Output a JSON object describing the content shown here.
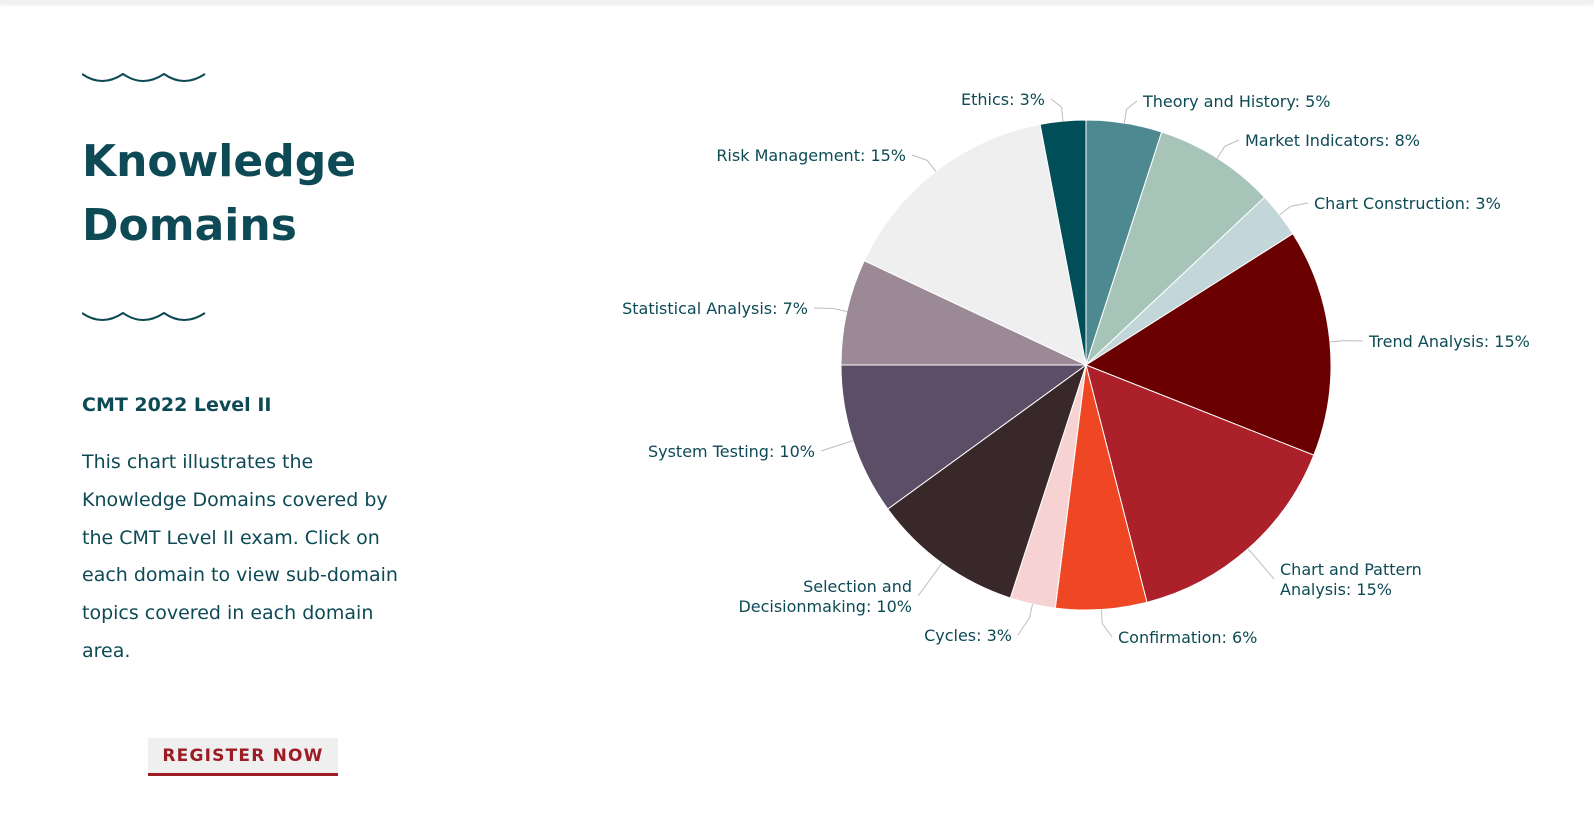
{
  "heading": {
    "title_line1": "Knowledge",
    "title_line2": "Domains"
  },
  "subtitle": "CMT 2022 Level II",
  "description": "This chart illustrates the Knowledge Domains covered by the CMT Level II exam. Click on each domain to view sub-domain topics covered in each domain area.",
  "register_button": "REGISTER NOW",
  "colors": {
    "heading": "#0d4a55",
    "button_text": "#9b1c24",
    "button_bg": "#efefef"
  },
  "chart_data": {
    "type": "pie",
    "title": "",
    "start_angle_deg": 0,
    "direction": "clockwise",
    "slices": [
      {
        "label": "Theory and History",
        "value": 5,
        "display": "Theory and History: 5%",
        "color": "#4e8992"
      },
      {
        "label": "Market Indicators",
        "value": 8,
        "display": "Market Indicators: 8%",
        "color": "#a7c4b9"
      },
      {
        "label": "Chart Construction",
        "value": 3,
        "display": "Chart Construction: 3%",
        "color": "#c3d7da"
      },
      {
        "label": "Trend Analysis",
        "value": 15,
        "display": "Trend Analysis: 15%",
        "color": "#6b0000"
      },
      {
        "label": "Chart and Pattern Analysis",
        "value": 15,
        "display": [
          "Chart and Pattern",
          "Analysis: 15%"
        ],
        "color": "#ab2029"
      },
      {
        "label": "Confirmation",
        "value": 6,
        "display": "Confirmation: 6%",
        "color": "#ef4724"
      },
      {
        "label": "Cycles",
        "value": 3,
        "display": "Cycles: 3%",
        "color": "#f7d2d3"
      },
      {
        "label": "Selection and Decisionmaking",
        "value": 10,
        "display": [
          "Selection and",
          "Decisionmaking: 10%"
        ],
        "color": "#382829"
      },
      {
        "label": "System Testing",
        "value": 10,
        "display": "System Testing: 10%",
        "color": "#5c4e66"
      },
      {
        "label": "Statistical Analysis",
        "value": 7,
        "display": "Statistical Analysis: 7%",
        "color": "#9b8a96"
      },
      {
        "label": "Risk Management",
        "value": 15,
        "display": "Risk Management: 15%",
        "color": "#efefef"
      },
      {
        "label": "Ethics",
        "value": 3,
        "display": "Ethics: 3%",
        "color": "#004e57"
      }
    ]
  }
}
